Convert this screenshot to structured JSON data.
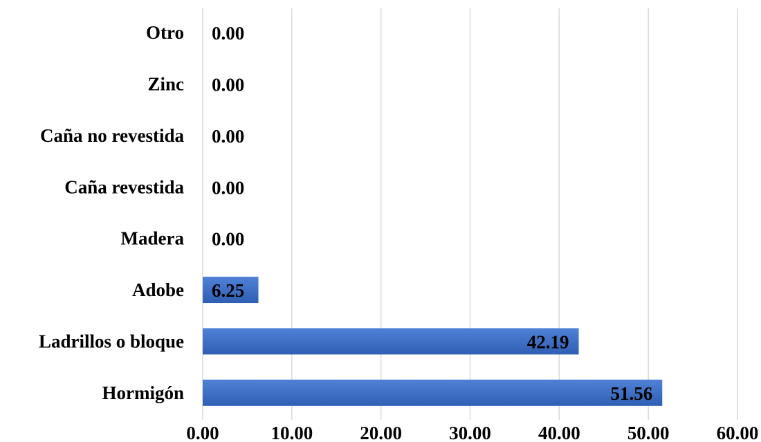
{
  "chart_data": {
    "type": "bar",
    "orientation": "horizontal",
    "categories": [
      "Hormigón",
      "Ladrillos o bloque",
      "Adobe",
      "Madera",
      "Caña revestida",
      "Caña no revestida",
      "Zinc",
      "Otro"
    ],
    "values": [
      51.56,
      42.19,
      6.25,
      0.0,
      0.0,
      0.0,
      0.0,
      0.0
    ],
    "value_labels": [
      "51.56",
      "42.19",
      "6.25",
      "0.00",
      "0.00",
      "0.00",
      "0.00",
      "0.00"
    ],
    "x_ticks": [
      "0.00",
      "10.00",
      "20.00",
      "30.00",
      "40.00",
      "50.00",
      "60.00"
    ],
    "xlim": [
      0,
      60
    ],
    "title": "",
    "xlabel": "",
    "ylabel": "",
    "grid": true,
    "legend": "none",
    "colors": {
      "bar_top": "#4f81d6",
      "bar_bottom": "#2f5fb3",
      "gridline": "#d9d9d9",
      "text": "#000000"
    }
  }
}
